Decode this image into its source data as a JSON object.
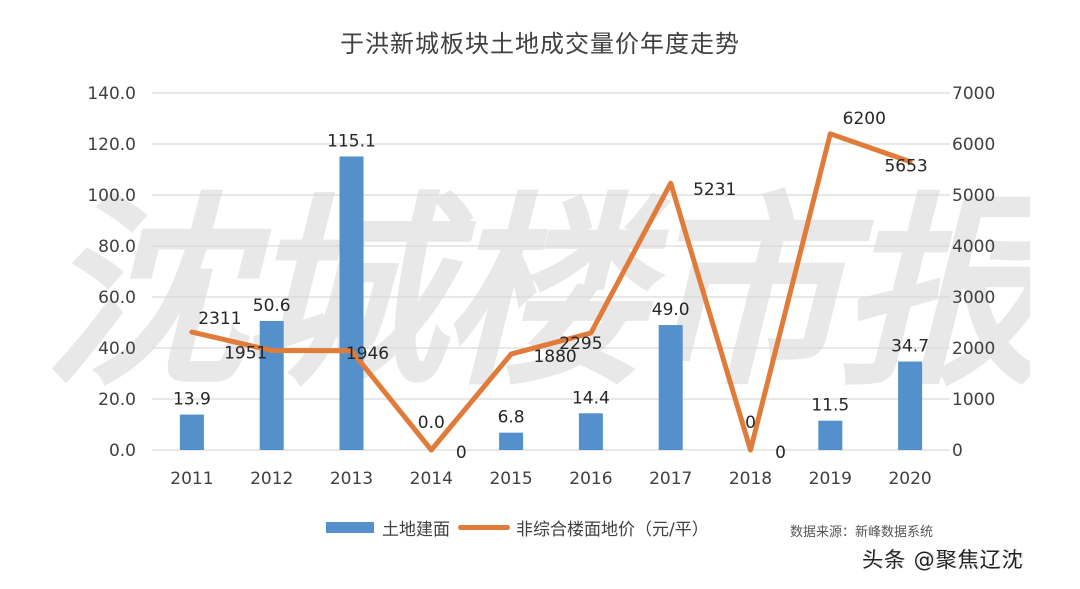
{
  "chart_data": {
    "type": "bar+line",
    "title": "于洪新城板块土地成交量价年度走势",
    "categories": [
      "2011",
      "2012",
      "2013",
      "2014",
      "2015",
      "2016",
      "2017",
      "2018",
      "2019",
      "2020"
    ],
    "series": [
      {
        "name": "土地建面",
        "type": "bar",
        "axis": "left",
        "color": "#5490cc",
        "values": [
          13.9,
          50.6,
          115.1,
          0.0,
          6.8,
          14.4,
          49.0,
          0,
          11.5,
          34.7
        ],
        "labels": [
          "13.9",
          "50.6",
          "115.1",
          "0.0",
          "6.8",
          "14.4",
          "49.0",
          "0",
          "11.5",
          "34.7"
        ]
      },
      {
        "name": "非综合楼面地价（元/平）",
        "type": "line",
        "axis": "right",
        "color": "#e07b39",
        "values": [
          2311,
          1951,
          1946,
          0,
          1880,
          2295,
          5231,
          0,
          6200,
          5653
        ],
        "labels": [
          "2311",
          "1951",
          "1946",
          "0",
          "1880",
          "2295",
          "5231",
          "0",
          "6200",
          "5653"
        ]
      }
    ],
    "left_axis": {
      "ylim": [
        0,
        140
      ],
      "ticks": [
        "0.0",
        "20.0",
        "40.0",
        "60.0",
        "80.0",
        "100.0",
        "120.0",
        "140.0"
      ]
    },
    "right_axis": {
      "ylim": [
        0,
        7000
      ],
      "ticks": [
        "0",
        "1000",
        "2000",
        "3000",
        "4000",
        "5000",
        "6000",
        "7000"
      ]
    },
    "xlabel": "",
    "ylabel": "",
    "grid": true,
    "legend_position": "bottom"
  },
  "legend": {
    "bar_label": "土地建面",
    "line_label": "非综合楼面地价（元/平）"
  },
  "source": "数据来源：新峰数据系统",
  "credit": "头条 @聚焦辽沈",
  "watermark": "沈城楼市报"
}
